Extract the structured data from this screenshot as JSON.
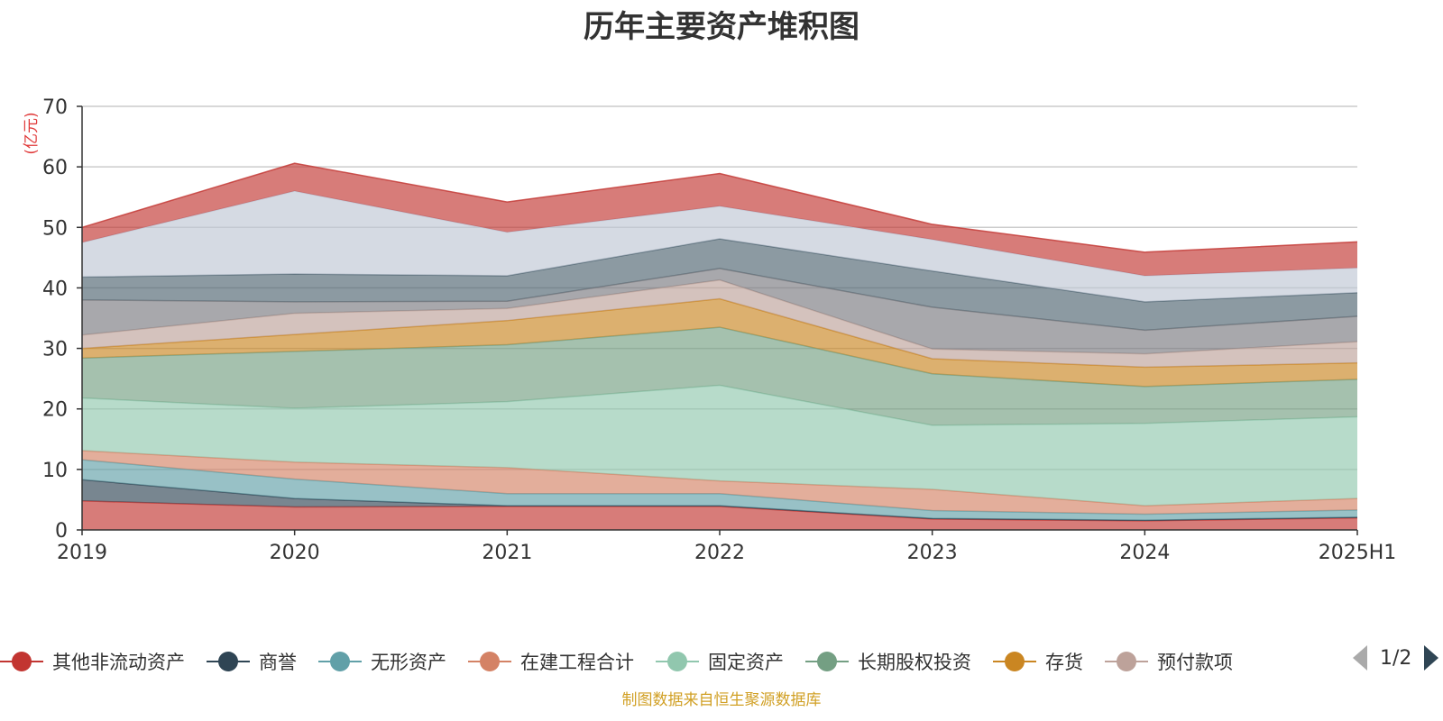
{
  "title": "历年主要资产堆积图",
  "unit_label": "(亿元)",
  "source_text": "制图数据来自恒生聚源数据库",
  "pager": {
    "text": "1/2"
  },
  "legend": [
    {
      "name": "其他非流动资产",
      "color": "#c23531"
    },
    {
      "name": "商誉",
      "color": "#2f4554"
    },
    {
      "name": "无形资产",
      "color": "#61a0a8"
    },
    {
      "name": "在建工程合计",
      "color": "#d48265"
    },
    {
      "name": "固定资产",
      "color": "#91c7ae"
    },
    {
      "name": "长期股权投资",
      "color": "#749f83"
    },
    {
      "name": "存货",
      "color": "#ca8622"
    },
    {
      "name": "预付款项",
      "color": "#bda29a"
    }
  ],
  "chart_data": {
    "type": "area",
    "stacked": true,
    "title": "历年主要资产堆积图",
    "ylabel": "(亿元)",
    "ylim": [
      0,
      70
    ],
    "yticks": [
      0,
      10,
      20,
      30,
      40,
      50,
      60,
      70
    ],
    "grid": true,
    "x": [
      "2019",
      "2020",
      "2021",
      "2022",
      "2023",
      "2024",
      "2025H1"
    ],
    "series": [
      {
        "name": "其他非流动资产",
        "color": "#c23531",
        "values": [
          4.8,
          3.8,
          3.9,
          3.9,
          1.8,
          1.5,
          2.0
        ]
      },
      {
        "name": "商誉",
        "color": "#2f4554",
        "values": [
          3.5,
          1.4,
          0.1,
          0.1,
          0.1,
          0.1,
          0.1
        ]
      },
      {
        "name": "无形资产",
        "color": "#61a0a8",
        "values": [
          3.3,
          3.2,
          2.0,
          2.0,
          1.3,
          1.0,
          1.2
        ]
      },
      {
        "name": "在建工程合计",
        "color": "#d48265",
        "values": [
          1.5,
          2.8,
          4.3,
          2.1,
          3.5,
          1.4,
          1.9
        ]
      },
      {
        "name": "固定资产",
        "color": "#91c7ae",
        "values": [
          8.7,
          8.9,
          10.9,
          15.8,
          10.6,
          13.6,
          13.5
        ]
      },
      {
        "name": "长期股权投资",
        "color": "#749f83",
        "values": [
          6.6,
          9.4,
          9.4,
          9.6,
          8.5,
          6.1,
          6.2
        ]
      },
      {
        "name": "存货",
        "color": "#ca8622",
        "values": [
          1.6,
          2.8,
          4.0,
          4.7,
          2.5,
          3.2,
          2.7
        ]
      },
      {
        "name": "预付款项",
        "color": "#bda29a",
        "values": [
          2.2,
          3.5,
          2.0,
          3.1,
          1.6,
          2.2,
          3.5
        ]
      },
      {
        "name": "",
        "color": "#7a7a80",
        "values": [
          5.8,
          1.9,
          1.2,
          1.9,
          6.9,
          3.9,
          4.2
        ]
      },
      {
        "name": "",
        "color": "#4f6470",
        "values": [
          3.8,
          4.6,
          4.2,
          4.9,
          6.0,
          4.7,
          3.9
        ]
      },
      {
        "name": "",
        "color": "#bfc6d4",
        "values": [
          5.7,
          13.7,
          7.2,
          5.4,
          5.2,
          4.3,
          4.1
        ]
      },
      {
        "name": "",
        "color": "#c23531",
        "values": [
          2.5,
          4.6,
          5.0,
          5.4,
          2.5,
          3.9,
          4.3
        ]
      }
    ]
  }
}
